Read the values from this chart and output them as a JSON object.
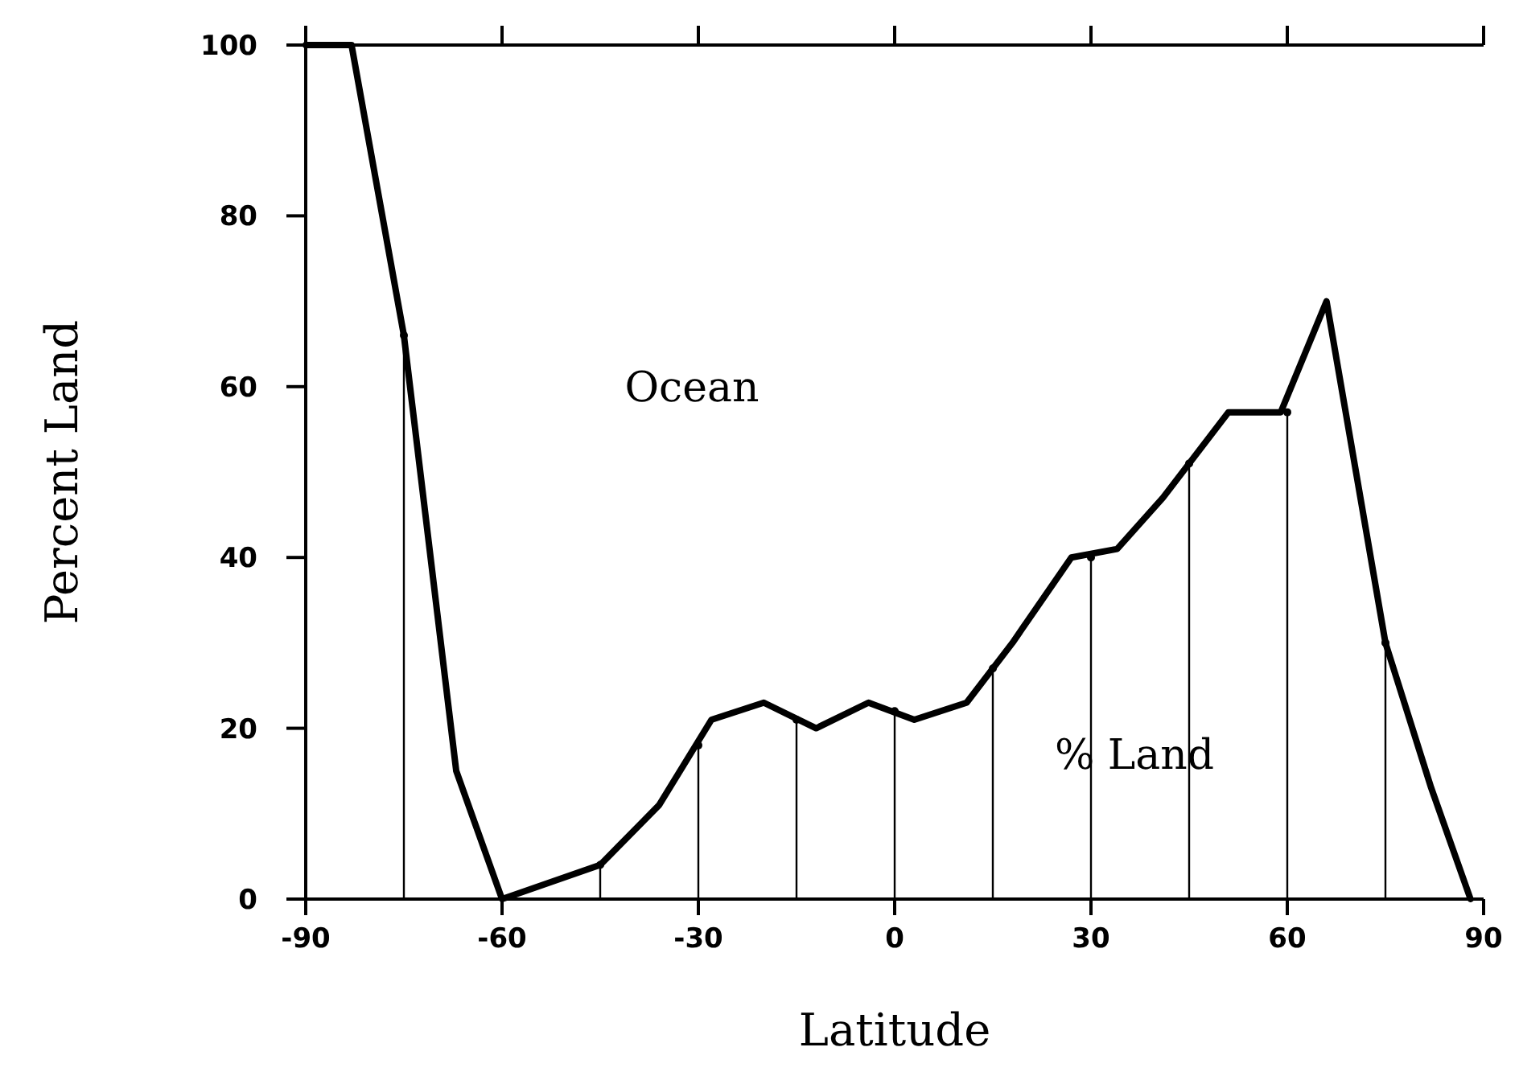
{
  "chart_data": {
    "type": "line",
    "xlabel": "Latitude",
    "ylabel": "Percent Land",
    "xlim": [
      -90,
      90
    ],
    "ylim": [
      0,
      100
    ],
    "xticks": [
      -90,
      -60,
      -30,
      0,
      30,
      60,
      90
    ],
    "yticks": [
      0,
      20,
      40,
      60,
      80,
      100
    ],
    "grid": false,
    "line_style": "solid",
    "series": [
      {
        "color": "#000000",
        "x": [
          -90,
          -83,
          -75,
          -67,
          -60,
          -45,
          -36,
          -28,
          -20,
          -12,
          -4,
          3,
          11,
          18,
          27,
          34,
          41,
          51,
          59,
          66,
          75,
          82,
          88
        ],
        "values": [
          100,
          100,
          66,
          15,
          0,
          4,
          11,
          21,
          23,
          20,
          23,
          21,
          23,
          30,
          40,
          41,
          47,
          57,
          57,
          70,
          30,
          13,
          0
        ]
      },
      {
        "type": "lollipop",
        "color": "#000000",
        "x": [
          -75,
          -45,
          -30,
          -15,
          0,
          15,
          30,
          45,
          60,
          75
        ],
        "values": [
          66,
          4,
          18,
          21,
          22,
          27,
          40,
          51,
          57,
          30
        ]
      }
    ],
    "annotations": [
      "Ocean",
      "% Land"
    ]
  }
}
